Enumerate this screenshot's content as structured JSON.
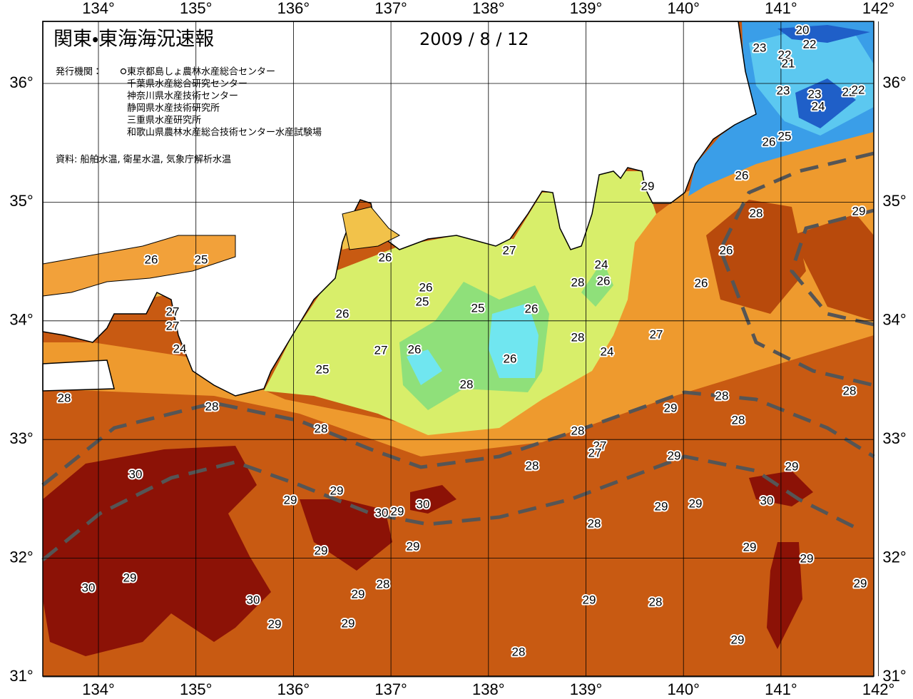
{
  "title": "関東・東海海況速報",
  "date": "2009 / 8 / 12",
  "issuer_label": "発行機関：",
  "issuers": [
    "東京都島しょ農林水産総合センター",
    "千葉県水産総合研究センター",
    "神奈川県水産技術センター",
    "静岡県水産技術研究所",
    "三重県水産研究所",
    "和歌山県農林水産総合技術センター水産試験場"
  ],
  "source": "資料: 船舶水温, 衛星水温, 気象庁解析水温",
  "lon_ticks": [
    {
      "value": 134,
      "label": "134°"
    },
    {
      "value": 135,
      "label": "135°"
    },
    {
      "value": 136,
      "label": "136°"
    },
    {
      "value": 137,
      "label": "137°"
    },
    {
      "value": 138,
      "label": "138°"
    },
    {
      "value": 139,
      "label": "139°"
    },
    {
      "value": 140,
      "label": "140°"
    },
    {
      "value": 141,
      "label": "141°"
    },
    {
      "value": 142,
      "label": "142°"
    }
  ],
  "lat_ticks": [
    {
      "value": 31,
      "label": "31°"
    },
    {
      "value": 32,
      "label": "32°"
    },
    {
      "value": 33,
      "label": "33°"
    },
    {
      "value": 34,
      "label": "34°"
    },
    {
      "value": 35,
      "label": "35°"
    },
    {
      "value": 36,
      "label": "36°"
    }
  ],
  "contour_labels": [
    20,
    22,
    23,
    22,
    21,
    23,
    23,
    22,
    22,
    24,
    25,
    26,
    26,
    29,
    28,
    29,
    26,
    26,
    27,
    26,
    25,
    24,
    26,
    28,
    26,
    26,
    25,
    25,
    26,
    26,
    27,
    27,
    27,
    28,
    24,
    26,
    27,
    24,
    26,
    25,
    28,
    28,
    28,
    28,
    29,
    28,
    28,
    28,
    28,
    27,
    29,
    27,
    28,
    29,
    30,
    29,
    30,
    29,
    30,
    29,
    29,
    29,
    30,
    28,
    29,
    29,
    29,
    29,
    29,
    28,
    29,
    30,
    29,
    30,
    29,
    28,
    29,
    29,
    29,
    28
  ]
}
